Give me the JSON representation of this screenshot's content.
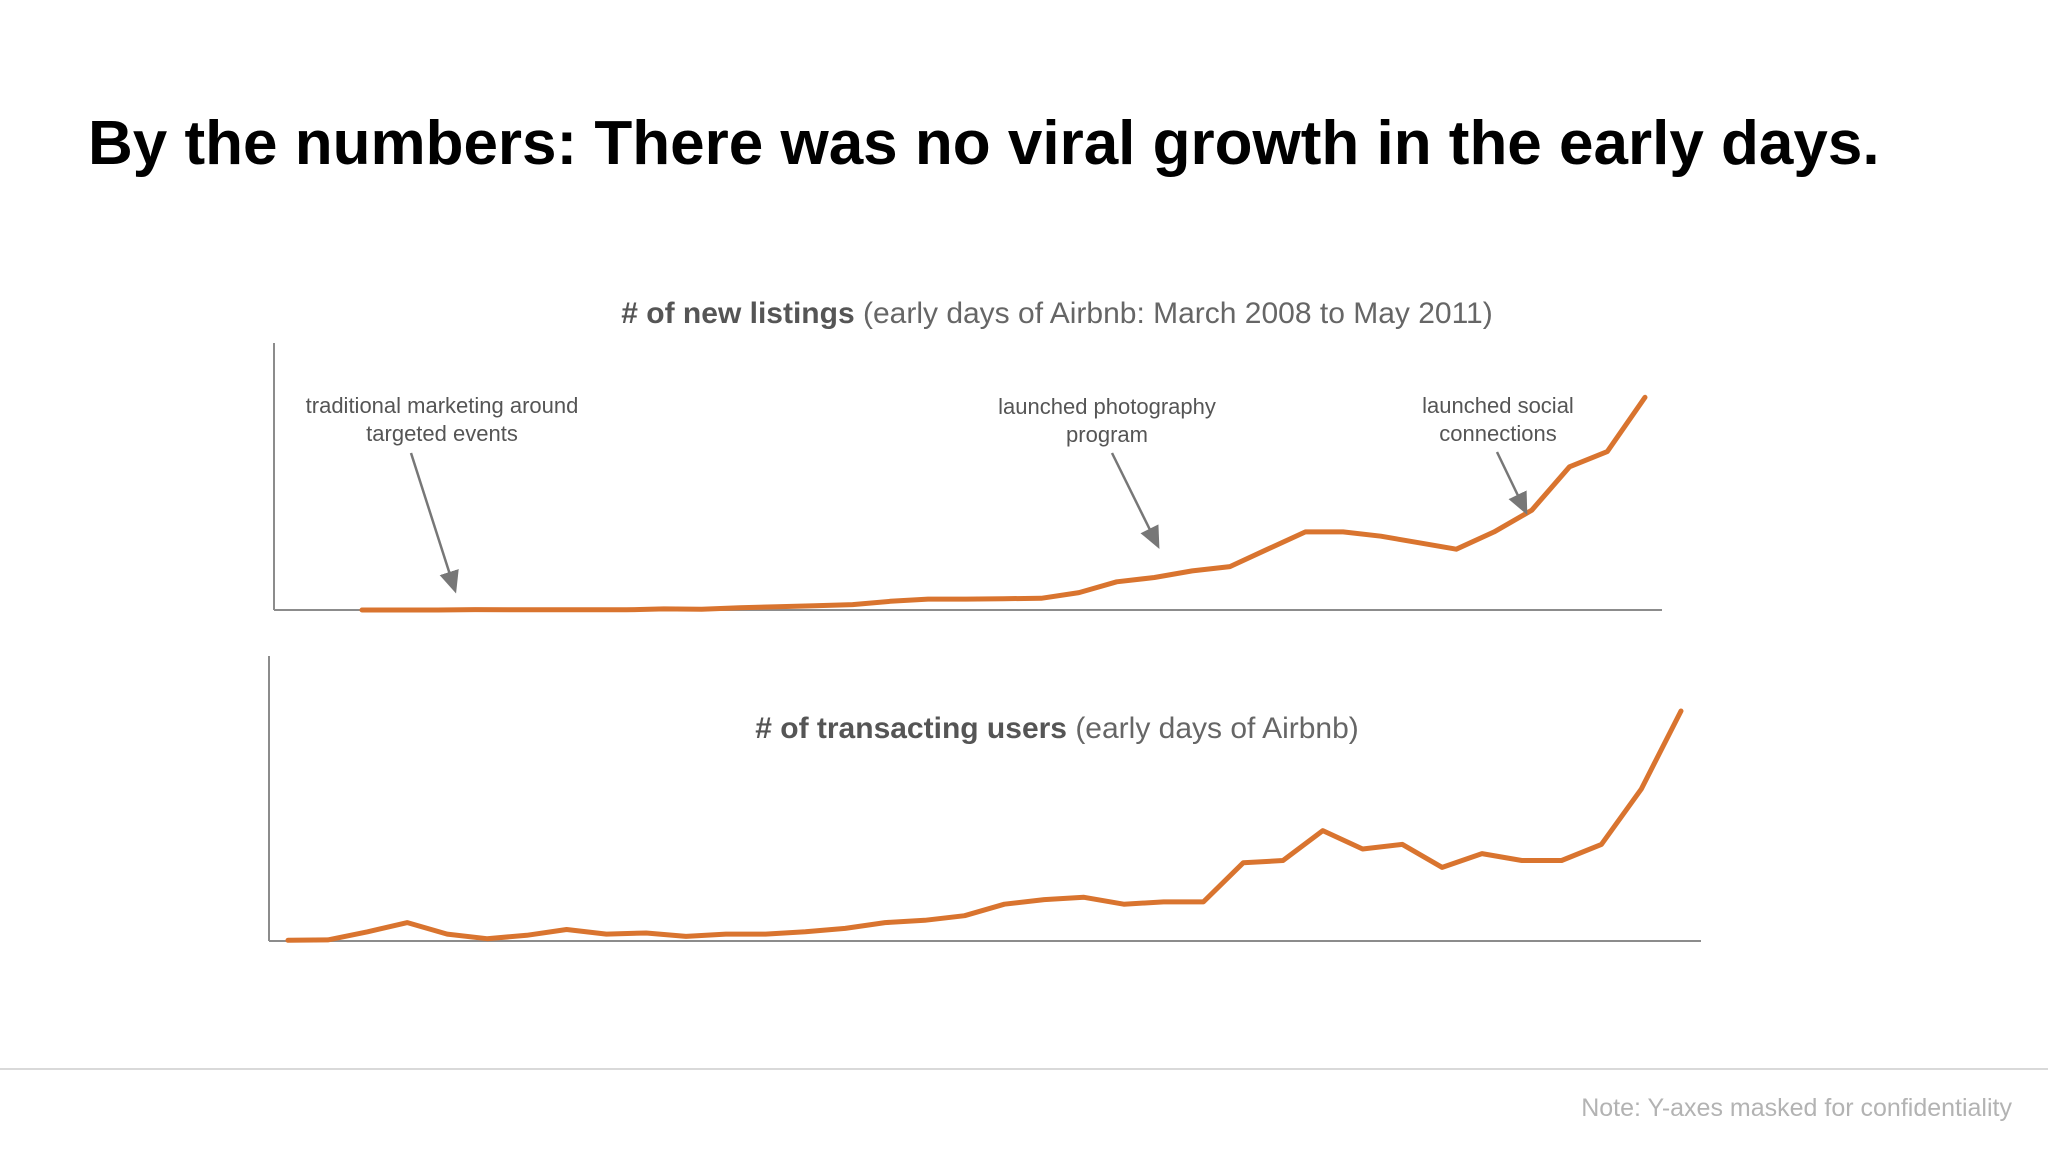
{
  "slide": {
    "title": "By the numbers: There was no viral growth in the early days.",
    "footnote": "Note: Y-axes masked for confidentiality"
  },
  "colors": {
    "line": "#D9742F",
    "axis": "#8c8c8c",
    "arrow": "#777777",
    "text_muted": "#666666",
    "footnote": "#b3b3b3"
  },
  "chart_data": [
    {
      "type": "line",
      "title_bold": "# of new listings",
      "title_rest": " (early days of Airbnb: March 2008 to May 2011)",
      "xlabel": "",
      "ylabel": "",
      "y_axis_masked": true,
      "grid": false,
      "x_range": [
        "March 2008",
        "May 2011"
      ],
      "series": [
        {
          "values": [
            0,
            0,
            0,
            0.2,
            0.1,
            0.1,
            0.1,
            0.1,
            0.5,
            0.3,
            1,
            1.5,
            2,
            2.5,
            4,
            5,
            5,
            5.2,
            5.4,
            8,
            13,
            15,
            18,
            20,
            28,
            36,
            36,
            34,
            31,
            28,
            36,
            46,
            66,
            73,
            98
          ]
        }
      ],
      "ylim": [
        0,
        100
      ],
      "annotations": [
        {
          "text": "traditional marketing around\ntargeted events",
          "target_index": 3
        },
        {
          "text": "launched photography\nprogram",
          "target_index": 22
        },
        {
          "text": "launched social\nconnections",
          "target_index": 32
        }
      ]
    },
    {
      "type": "line",
      "title_bold": "# of transacting users",
      "title_rest": " (early days of Airbnb)",
      "xlabel": "",
      "ylabel": "",
      "y_axis_masked": true,
      "grid": false,
      "series": [
        {
          "values": [
            0.3,
            0.5,
            4,
            8,
            3,
            1,
            2.5,
            5,
            3,
            3.5,
            2,
            3,
            3,
            4,
            5.5,
            8,
            9,
            11,
            16,
            18,
            19,
            16,
            17,
            17,
            34,
            35,
            48,
            40,
            42,
            32,
            38,
            35,
            35,
            42,
            66,
            100
          ]
        }
      ],
      "ylim": [
        0,
        100
      ]
    }
  ]
}
